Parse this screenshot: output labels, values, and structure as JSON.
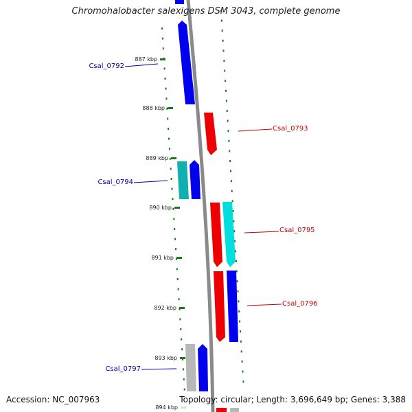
{
  "title": "Chromohalobacter salexigens DSM 3043, complete genome",
  "footer": {
    "accession": "Accession: NC_007963",
    "summary": "Topology: circular; Length: 3,696,649 bp; Genes: 3,388"
  },
  "colors": {
    "backbone": "#8a8a8a",
    "ticks": "#1a7a1a",
    "forward_label": "#c40000",
    "reverse_label": "#0000aa",
    "blue": "#0000ee",
    "red": "#ee0000",
    "cyan": "#00dede",
    "teal": "#10b0b0",
    "gray": "#b8b8b8"
  },
  "scale": {
    "ticks": [
      {
        "label": "887 kbp"
      },
      {
        "label": "888 kbp"
      },
      {
        "label": "889 kbp"
      },
      {
        "label": "890 kbp"
      },
      {
        "label": "891 kbp"
      },
      {
        "label": "892 kbp"
      },
      {
        "label": "893 kbp"
      },
      {
        "label": "894 kbp"
      }
    ]
  },
  "labels": [
    {
      "text": "Csal_0792",
      "strand": "reverse"
    },
    {
      "text": "Csal_0793",
      "strand": "forward"
    },
    {
      "text": "Csal_0794",
      "strand": "reverse"
    },
    {
      "text": "Csal_0795",
      "strand": "forward"
    },
    {
      "text": "Csal_0796",
      "strand": "forward"
    },
    {
      "text": "Csal_0797",
      "strand": "reverse"
    }
  ]
}
